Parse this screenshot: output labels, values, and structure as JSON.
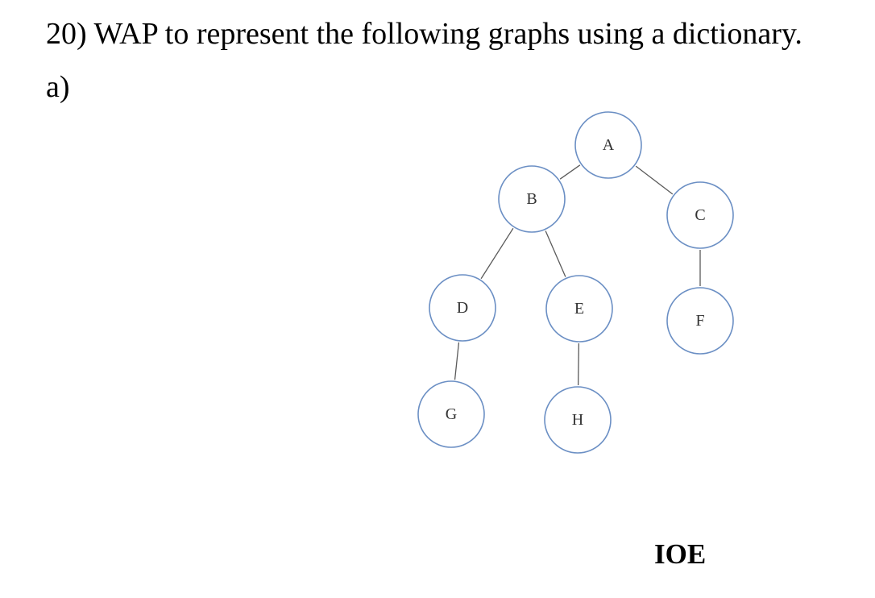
{
  "question": {
    "text": "20) WAP to represent the following graphs using a dictionary."
  },
  "part_label": "a)",
  "graph": {
    "nodes": [
      {
        "id": "A",
        "label": "A"
      },
      {
        "id": "B",
        "label": "B"
      },
      {
        "id": "C",
        "label": "C"
      },
      {
        "id": "D",
        "label": "D"
      },
      {
        "id": "E",
        "label": "E"
      },
      {
        "id": "F",
        "label": "F"
      },
      {
        "id": "G",
        "label": "G"
      },
      {
        "id": "H",
        "label": "H"
      }
    ],
    "edges": [
      {
        "from": "A",
        "to": "B"
      },
      {
        "from": "A",
        "to": "C"
      },
      {
        "from": "B",
        "to": "D"
      },
      {
        "from": "B",
        "to": "E"
      },
      {
        "from": "C",
        "to": "F"
      },
      {
        "from": "D",
        "to": "G"
      },
      {
        "from": "E",
        "to": "H"
      }
    ],
    "colors": {
      "node_border": "#6b8fc4",
      "edge": "#5a5a5a"
    }
  },
  "footer": "IOE"
}
